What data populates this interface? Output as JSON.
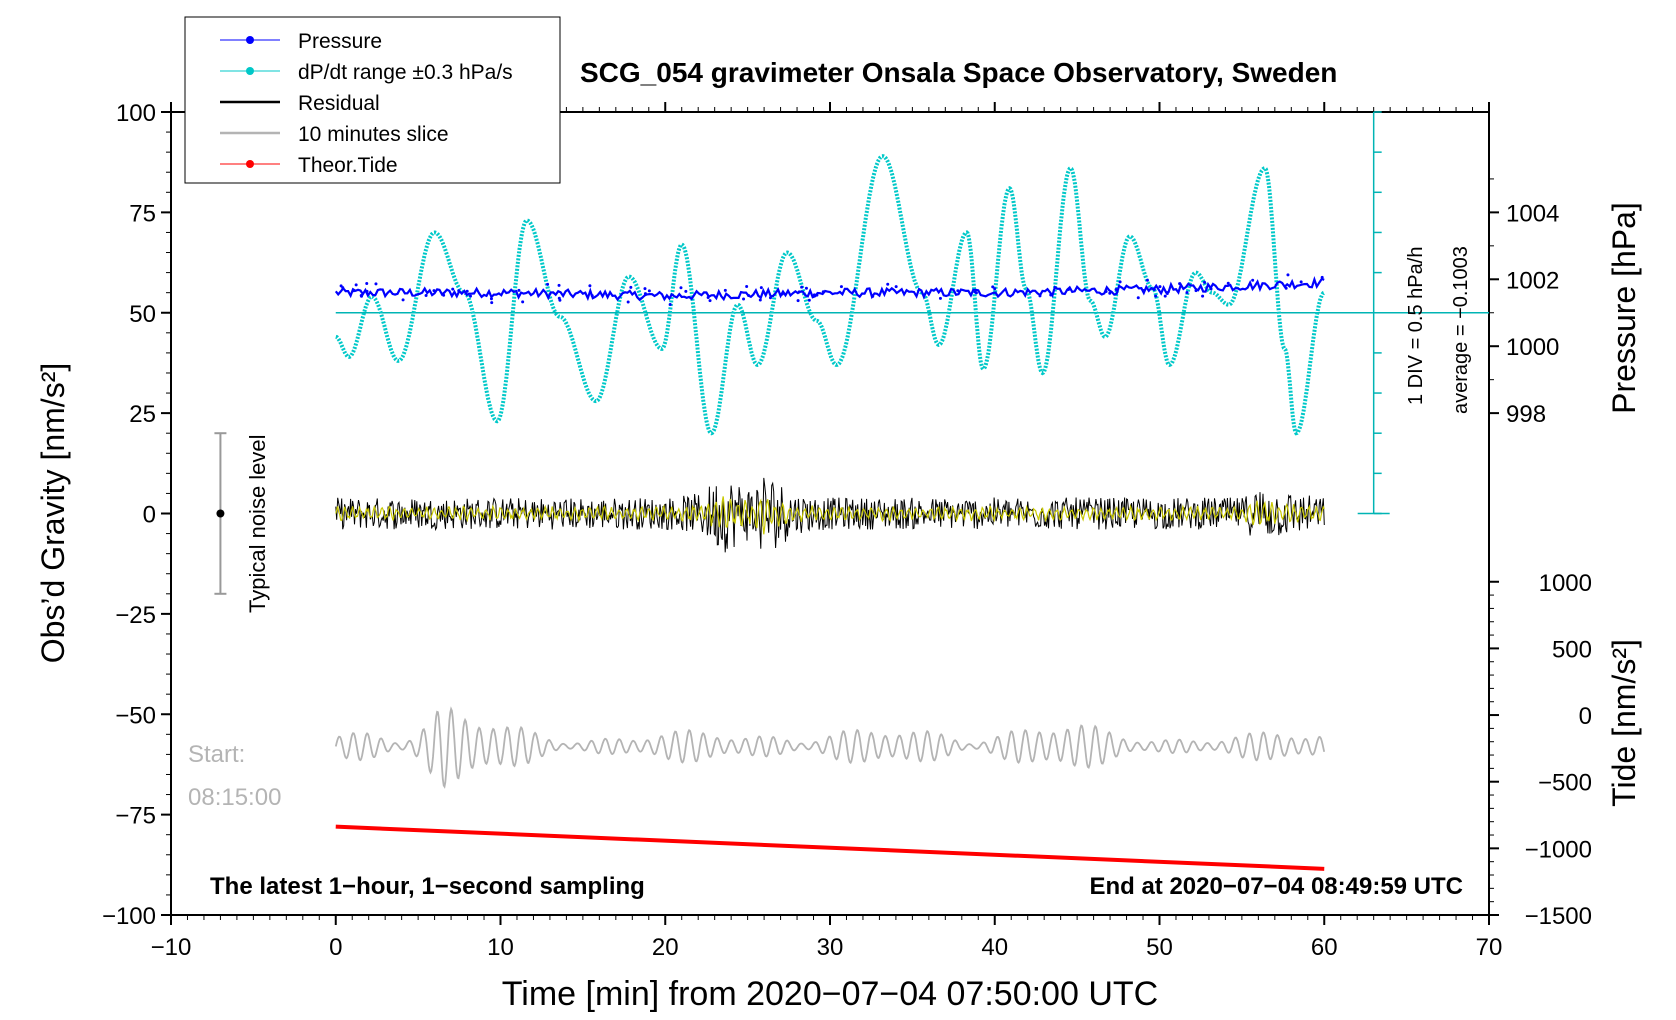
{
  "chart_data": {
    "type": "line",
    "title": "SCG_054 gravimeter Onsala Space Observatory, Sweden",
    "xlabel": "Time [min] from 2020−07−04 07:50:00 UTC",
    "ylabel_left": "Obs’d Gravity [nm/s²]",
    "ylabel_right_upper": "Pressure [hPa]",
    "ylabel_right_lower": "Tide [nm/s²]",
    "xlim": [
      -10,
      70
    ],
    "ylim": [
      -100,
      100
    ],
    "x_ticks": [
      "−10",
      "0",
      "10",
      "20",
      "30",
      "40",
      "50",
      "60",
      "70"
    ],
    "y_ticks": [
      "100",
      "75",
      "50",
      "25",
      "0",
      "−25",
      "−50",
      "−75",
      "−100"
    ],
    "y_tick_values": [
      100,
      75,
      50,
      25,
      0,
      -25,
      -50,
      -75,
      -100
    ],
    "pressure_axis": {
      "ticks": [
        "1004",
        "1002",
        "1000",
        "998"
      ],
      "values": [
        1004,
        1002,
        1000,
        998
      ],
      "mapping": {
        "hpa": [
          998,
          1004
        ],
        "gravity": [
          25,
          75
        ]
      }
    },
    "tide_axis": {
      "ticks": [
        "1000",
        "500",
        "0",
        "−500",
        "−1000",
        "−1500"
      ],
      "values": [
        1000,
        500,
        0,
        -500,
        -1000,
        -1500
      ],
      "mapping": {
        "tide": [
          -1500,
          1000
        ],
        "gravity": [
          -100,
          -17
        ]
      }
    },
    "legend": {
      "placement": "top-left",
      "entries": [
        {
          "label": "Pressure",
          "color": "#0000ff",
          "marker": true
        },
        {
          "label": "dP/dt range ±0.3 hPa/s",
          "color": "#00c8c8",
          "marker": true
        },
        {
          "label": "Residual",
          "color": "#000000",
          "marker": false
        },
        {
          "label": "10 minutes slice",
          "color": "#b4b4b4",
          "marker": false
        },
        {
          "label": "Theor.Tide",
          "color": "#ff0000",
          "marker": true
        }
      ]
    },
    "noise_bar": {
      "label": "Typical noise level",
      "x": -7,
      "center": 0,
      "half_range": 20
    },
    "dpdt_scale": {
      "line1": "1 DIV = 0.5 hPa/h",
      "line2": "average = −0.1003",
      "x": 63,
      "y_bottom": 0,
      "y_top": 100,
      "baseline": 50
    },
    "start_label": [
      "Start:",
      "08:15:00"
    ],
    "footer_left": "The latest 1−hour, 1−second sampling",
    "footer_right": "End at 2020−07−04 08:49:59 UTC",
    "series": [
      {
        "name": "Pressure",
        "color": "#0000ff",
        "x": [
          0,
          10,
          20,
          30,
          40,
          50,
          55,
          60
        ],
        "values": [
          1001.6,
          1001.6,
          1001.5,
          1001.6,
          1001.6,
          1001.7,
          1001.8,
          1001.9
        ]
      },
      {
        "name": "dP/dt range ±0.3 hPa/s",
        "color": "#00c8c8",
        "x": [
          0,
          0.8,
          2.2,
          3.8,
          6.0,
          7.8,
          9.8,
          11.6,
          13.6,
          15.8,
          17.8,
          19.8,
          21.0,
          22.8,
          24.4,
          25.6,
          27.4,
          29.2,
          30.4,
          33.2,
          35.6,
          36.6,
          38.3,
          39.3,
          40.9,
          41.9,
          42.9,
          44.6,
          45.8,
          46.7,
          48.2,
          49.6,
          50.6,
          52.2,
          53.2,
          54.2,
          56.4,
          57.6,
          58.3,
          60
        ],
        "values": [
          44,
          39,
          54,
          38,
          70,
          55,
          23,
          73,
          49,
          28,
          59,
          41,
          67,
          20,
          52,
          37,
          65,
          48,
          37,
          89,
          55,
          42,
          70,
          36,
          81,
          56,
          35,
          86,
          53,
          44,
          69,
          56,
          37,
          60,
          55,
          52,
          86,
          41,
          20,
          55
        ]
      },
      {
        "name": "Residual",
        "color": "#000000",
        "x": [
          0,
          5,
          10,
          15,
          20,
          22,
          23.5,
          25,
          26,
          28,
          30,
          40,
          50,
          55,
          56,
          60
        ],
        "values": [
          4,
          4,
          4,
          4,
          4,
          5,
          10,
          7,
          11,
          5,
          4,
          4,
          4,
          4,
          7,
          4
        ],
        "note": "values = approximate envelope amplitude about 0"
      },
      {
        "name": "10 minutes slice",
        "color": "#b4b4b4",
        "x": [
          0,
          5,
          6.5,
          8,
          10,
          15,
          20,
          40,
          43,
          50,
          60
        ],
        "values": [
          4,
          8,
          13,
          10,
          6,
          3,
          4,
          5,
          7,
          3,
          4
        ],
        "baseline": -58,
        "note": "values = approximate oscillation amplitude about baseline"
      },
      {
        "name": "Theor.Tide",
        "color": "#ff0000",
        "x": [
          0,
          60
        ],
        "values": [
          -78,
          -88.5
        ]
      }
    ]
  }
}
